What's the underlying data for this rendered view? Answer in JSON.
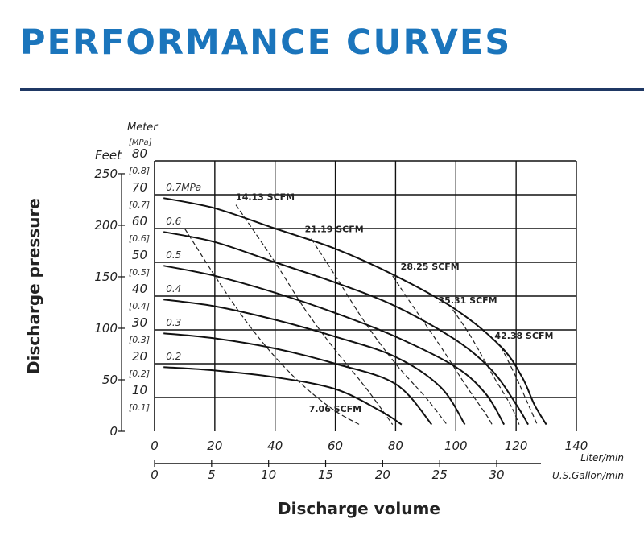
{
  "title": "PERFORMANCE CURVES",
  "chart_data": {
    "type": "line",
    "xlabel": "Discharge volume",
    "ylabel": "Discharge pressure",
    "x_axis": {
      "unit": "Liter/min",
      "range": [
        0,
        140
      ],
      "ticks": [
        0,
        20,
        40,
        60,
        80,
        100,
        120,
        140
      ]
    },
    "x2_axis": {
      "unit": "U.S.Gallon/min",
      "ticks": [
        0,
        5,
        10,
        15,
        20,
        25,
        30
      ]
    },
    "y_axis": {
      "unit": "Meter",
      "range": [
        0,
        80
      ],
      "ticks": [
        10,
        20,
        30,
        40,
        50,
        60,
        70,
        80
      ]
    },
    "y_feet_axis": {
      "unit": "Feet",
      "ticks": [
        0,
        50,
        100,
        150,
        200,
        250
      ]
    },
    "y_mpa_axis": {
      "unit": "[MPa]",
      "ticks": [
        "[0.1]",
        "[0.2]",
        "[0.3]",
        "[0.4]",
        "[0.5]",
        "[0.6]",
        "[0.7]",
        "[0.8]"
      ]
    },
    "grid": true,
    "pressure_curves": [
      {
        "name": "0.7MPa",
        "points": [
          [
            3,
            69
          ],
          [
            20,
            66
          ],
          [
            40,
            60
          ],
          [
            60,
            54
          ],
          [
            80,
            46
          ],
          [
            100,
            36
          ],
          [
            115,
            25
          ],
          [
            122,
            16
          ],
          [
            126,
            8
          ],
          [
            130,
            2
          ]
        ]
      },
      {
        "name": "0.6",
        "points": [
          [
            3,
            59
          ],
          [
            20,
            56
          ],
          [
            40,
            50
          ],
          [
            60,
            44
          ],
          [
            80,
            37
          ],
          [
            100,
            27
          ],
          [
            112,
            18
          ],
          [
            120,
            8
          ],
          [
            124,
            2
          ]
        ]
      },
      {
        "name": "0.5",
        "points": [
          [
            3,
            49
          ],
          [
            20,
            46
          ],
          [
            40,
            41
          ],
          [
            60,
            35
          ],
          [
            80,
            28
          ],
          [
            100,
            19
          ],
          [
            110,
            11
          ],
          [
            116,
            2
          ]
        ]
      },
      {
        "name": "0.4",
        "points": [
          [
            3,
            39
          ],
          [
            20,
            37
          ],
          [
            40,
            33
          ],
          [
            60,
            28
          ],
          [
            80,
            22
          ],
          [
            95,
            13
          ],
          [
            103,
            2
          ]
        ]
      },
      {
        "name": "0.3",
        "points": [
          [
            3,
            29
          ],
          [
            20,
            27.5
          ],
          [
            40,
            24.5
          ],
          [
            60,
            20
          ],
          [
            80,
            14
          ],
          [
            92,
            2
          ]
        ]
      },
      {
        "name": "0.2",
        "points": [
          [
            3,
            19
          ],
          [
            20,
            18
          ],
          [
            40,
            16
          ],
          [
            60,
            12.5
          ],
          [
            75,
            6
          ],
          [
            82,
            2
          ]
        ]
      }
    ],
    "air_consumption_curves": [
      {
        "name": "7.06 SCFM",
        "points": [
          [
            10,
            60
          ],
          [
            20,
            46
          ],
          [
            30,
            33
          ],
          [
            40,
            22
          ],
          [
            50,
            13
          ],
          [
            60,
            6
          ],
          [
            68,
            2
          ]
        ]
      },
      {
        "name": "14.13 SCFM",
        "points": [
          [
            27,
            67
          ],
          [
            40,
            50
          ],
          [
            50,
            36
          ],
          [
            60,
            24
          ],
          [
            70,
            13
          ],
          [
            79,
            2
          ]
        ]
      },
      {
        "name": "21.19 SCFM",
        "points": [
          [
            52,
            57
          ],
          [
            60,
            46
          ],
          [
            70,
            32
          ],
          [
            80,
            20
          ],
          [
            90,
            10
          ],
          [
            97,
            2
          ]
        ]
      },
      {
        "name": "28.25 SCFM",
        "points": [
          [
            79,
            46
          ],
          [
            85,
            38
          ],
          [
            95,
            25
          ],
          [
            103,
            14
          ],
          [
            110,
            5
          ],
          [
            112,
            2
          ]
        ]
      },
      {
        "name": "35.31 SCFM",
        "points": [
          [
            99,
            36
          ],
          [
            105,
            28
          ],
          [
            112,
            17
          ],
          [
            118,
            8
          ],
          [
            121,
            2
          ]
        ]
      },
      {
        "name": "42.38 SCFM",
        "points": [
          [
            115,
            25
          ],
          [
            120,
            16
          ],
          [
            124,
            8
          ],
          [
            127,
            2
          ]
        ]
      }
    ]
  }
}
